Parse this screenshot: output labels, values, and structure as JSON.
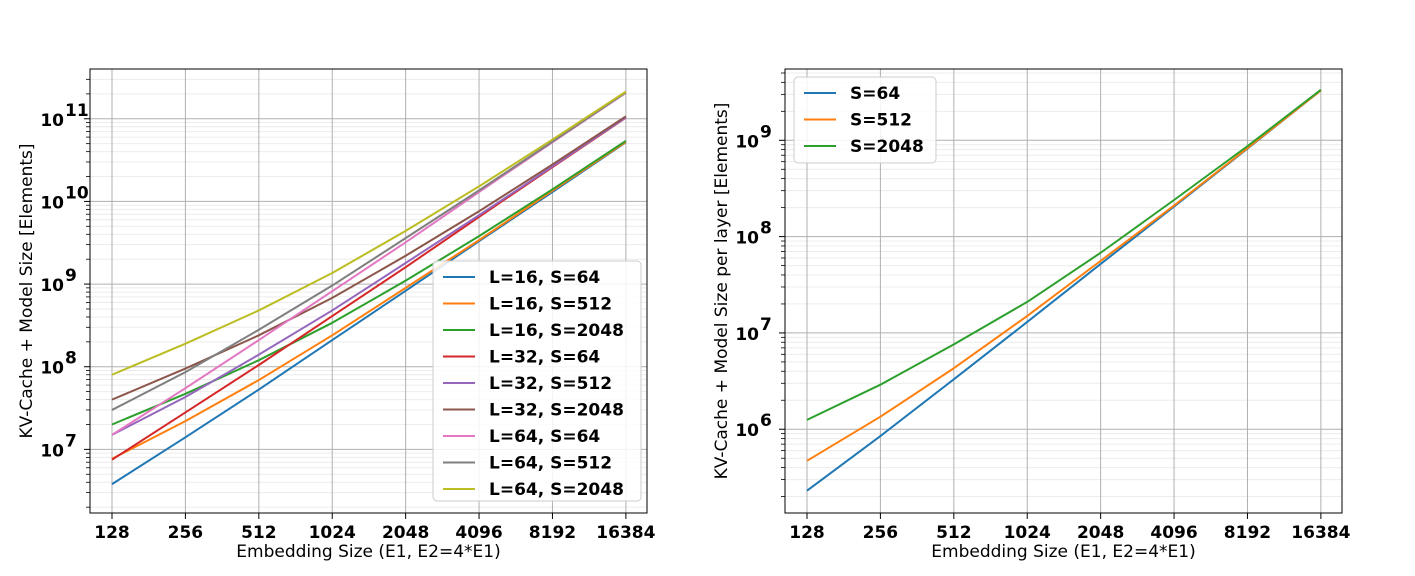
{
  "chart_data": [
    {
      "type": "line",
      "xscale": "log2",
      "yscale": "log10",
      "x": [
        128,
        256,
        512,
        1024,
        2048,
        4096,
        8192,
        16384
      ],
      "xticks": [
        "128",
        "256",
        "512",
        "1024",
        "2048",
        "4096",
        "8192",
        "16384"
      ],
      "xlim": [
        104,
        20000
      ],
      "ylim": [
        1700000.0,
        400000000000.0
      ],
      "yticks": [
        {
          "value": 10000000.0,
          "base": "10",
          "exp": "7"
        },
        {
          "value": 100000000.0,
          "base": "10",
          "exp": "8"
        },
        {
          "value": 1000000000.0,
          "base": "10",
          "exp": "9"
        },
        {
          "value": 10000000000.0,
          "base": "10",
          "exp": "10"
        },
        {
          "value": 100000000000.0,
          "base": "10",
          "exp": "11"
        }
      ],
      "xlabel": "Embedding Size (E1, E2=4*E1)",
      "ylabel": "KV-Cache + Model Size [Elements]",
      "grid": true,
      "legend_position": "bottom-right",
      "series": [
        {
          "name": "L=16, S=64",
          "color": "#1f77b4",
          "values": [
            3800000.0,
            14000000.0,
            53000000.0,
            210000000.0,
            830000000.0,
            3300000000.0,
            13000000000.0,
            52000000000.0
          ]
        },
        {
          "name": "L=16, S=512",
          "color": "#ff7f0e",
          "values": [
            7700000.0,
            22000000.0,
            69000000.0,
            240000000.0,
            900000000.0,
            3400000000.0,
            13500000000.0,
            52500000000.0
          ]
        },
        {
          "name": "L=16, S=2048",
          "color": "#2ca02c",
          "values": [
            20000000.0,
            47000000.0,
            120000000.0,
            340000000.0,
            1100000000.0,
            3800000000.0,
            14000000000.0,
            54000000000.0
          ]
        },
        {
          "name": "L=32, S=64",
          "color": "#d62728",
          "values": [
            7500000.0,
            28000000.0,
            105000000.0,
            410000000.0,
            1600000000.0,
            6500000000.0,
            26000000000.0,
            103000000000.0
          ]
        },
        {
          "name": "L=32, S=512",
          "color": "#9467bd",
          "values": [
            15000000.0,
            43000000.0,
            140000000.0,
            480000000.0,
            1800000000.0,
            6800000000.0,
            26500000000.0,
            104000000000.0
          ]
        },
        {
          "name": "L=32, S=2048",
          "color": "#8c564b",
          "values": [
            40000000.0,
            95000000.0,
            240000000.0,
            680000000.0,
            2200000000.0,
            7600000000.0,
            28000000000.0,
            107000000000.0
          ]
        },
        {
          "name": "L=64, S=64",
          "color": "#e377c2",
          "values": [
            15000000.0,
            55000000.0,
            210000000.0,
            820000000.0,
            3200000000.0,
            13000000000.0,
            52000000000.0,
            206000000000.0
          ]
        },
        {
          "name": "L=64, S=512",
          "color": "#7f7f7f",
          "values": [
            30000000.0,
            86000000.0,
            280000000.0,
            960000000.0,
            3600000000.0,
            13600000000.0,
            53000000000.0,
            208000000000.0
          ]
        },
        {
          "name": "L=64, S=2048",
          "color": "#bcbd22",
          "values": [
            80000000.0,
            190000000.0,
            480000000.0,
            1360000000.0,
            4400000000.0,
            15200000000.0,
            56000000000.0,
            213000000000.0
          ]
        }
      ]
    },
    {
      "type": "line",
      "xscale": "log2",
      "yscale": "log10",
      "x": [
        128,
        256,
        512,
        1024,
        2048,
        4096,
        8192,
        16384
      ],
      "xticks": [
        "128",
        "256",
        "512",
        "1024",
        "2048",
        "4096",
        "8192",
        "16384"
      ],
      "xlim": [
        104,
        20000
      ],
      "ylim": [
        135000.0,
        5500000000.0
      ],
      "yticks": [
        {
          "value": 1000000.0,
          "base": "10",
          "exp": "6"
        },
        {
          "value": 10000000.0,
          "base": "10",
          "exp": "7"
        },
        {
          "value": 100000000.0,
          "base": "10",
          "exp": "8"
        },
        {
          "value": 1000000000.0,
          "base": "10",
          "exp": "9"
        }
      ],
      "xlabel": "Embedding Size (E1, E2=4*E1)",
      "ylabel": "KV-Cache + Model Size per layer [Elements]",
      "grid": true,
      "legend_position": "top-left",
      "series": [
        {
          "name": "S=64",
          "color": "#1f77b4",
          "values": [
            230000.0,
            850000.0,
            3300000.0,
            13000000.0,
            52000000.0,
            205000000.0,
            820000000.0,
            3300000000.0
          ]
        },
        {
          "name": "S=512",
          "color": "#ff7f0e",
          "values": [
            470000.0,
            1350000.0,
            4300000.0,
            15000000.0,
            56000000.0,
            210000000.0,
            830000000.0,
            3300000000.0
          ]
        },
        {
          "name": "S=2048",
          "color": "#2ca02c",
          "values": [
            1250000.0,
            2900000.0,
            7600000.0,
            21000000.0,
            68000000.0,
            240000000.0,
            870000000.0,
            3350000000.0
          ]
        }
      ]
    }
  ]
}
